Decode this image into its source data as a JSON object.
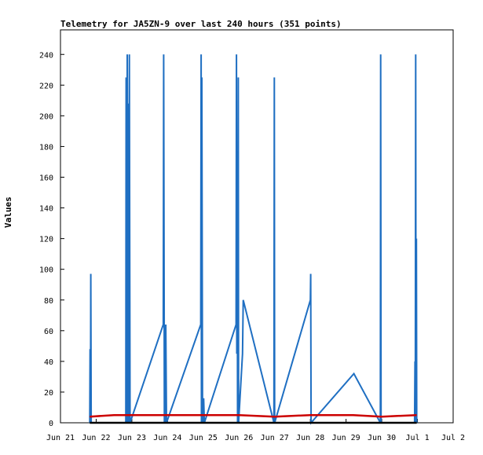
{
  "chart_data": {
    "type": "line",
    "title": "Telemetry for JA5ZN-9 over last 240 hours (351 points)",
    "xlabel": "",
    "ylabel": "Values",
    "x_tick_labels": [
      "Jun 21",
      "Jun 22",
      "Jun 23",
      "Jun 24",
      "Jun 25",
      "Jun 26",
      "Jun 27",
      "Jun 28",
      "Jun 29",
      "Jun 30",
      "Jul 1",
      "Jul 2"
    ],
    "xlim_days": [
      0,
      11
    ],
    "y_ticks": [
      0,
      20,
      40,
      60,
      80,
      100,
      120,
      140,
      160,
      180,
      200,
      220,
      240
    ],
    "ylim": [
      0,
      256
    ],
    "grid": false,
    "series": [
      {
        "color": "#1f6fc2",
        "points": [
          [
            0.82,
            0
          ],
          [
            0.83,
            48
          ],
          [
            0.84,
            0
          ],
          [
            0.85,
            97
          ],
          [
            0.86,
            0
          ],
          [
            1.83,
            0
          ],
          [
            1.84,
            225
          ],
          [
            1.86,
            0
          ],
          [
            1.87,
            240
          ],
          [
            1.89,
            0
          ],
          [
            1.9,
            208
          ],
          [
            1.92,
            0
          ],
          [
            1.93,
            240
          ],
          [
            1.95,
            0
          ],
          [
            2.88,
            64
          ],
          [
            2.89,
            240
          ],
          [
            2.91,
            0
          ],
          [
            2.93,
            40
          ],
          [
            2.94,
            0
          ],
          [
            2.95,
            64
          ],
          [
            2.97,
            0
          ],
          [
            3.93,
            64
          ],
          [
            3.94,
            240
          ],
          [
            3.95,
            0
          ],
          [
            3.96,
            225
          ],
          [
            3.98,
            0
          ],
          [
            3.99,
            16
          ],
          [
            4.0,
            0
          ],
          [
            4.01,
            16
          ],
          [
            4.03,
            0
          ],
          [
            4.92,
            64
          ],
          [
            4.93,
            240
          ],
          [
            4.94,
            45
          ],
          [
            4.95,
            177
          ],
          [
            4.96,
            0
          ],
          [
            4.97,
            64
          ],
          [
            4.98,
            225
          ],
          [
            4.99,
            0
          ],
          [
            5.1,
            45
          ],
          [
            5.12,
            80
          ],
          [
            5.98,
            0
          ],
          [
            5.99,
            225
          ],
          [
            6.0,
            0
          ],
          [
            7.0,
            80
          ],
          [
            7.01,
            97
          ],
          [
            7.02,
            0
          ],
          [
            8.22,
            32
          ],
          [
            8.96,
            0
          ],
          [
            8.97,
            240
          ],
          [
            8.98,
            0
          ],
          [
            9.92,
            0
          ],
          [
            9.93,
            40
          ],
          [
            9.94,
            0
          ],
          [
            9.95,
            240
          ],
          [
            9.96,
            0
          ],
          [
            9.97,
            120
          ],
          [
            9.98,
            0
          ]
        ]
      },
      {
        "color": "#cc0000",
        "points": [
          [
            0.82,
            4
          ],
          [
            1.5,
            5
          ],
          [
            3.0,
            5
          ],
          [
            5.0,
            5
          ],
          [
            6.0,
            4
          ],
          [
            7.0,
            5
          ],
          [
            8.2,
            5
          ],
          [
            9.0,
            4
          ],
          [
            9.98,
            5
          ]
        ]
      },
      {
        "color": "#000000",
        "points": [
          [
            0.82,
            0
          ],
          [
            9.98,
            0
          ]
        ]
      }
    ]
  }
}
